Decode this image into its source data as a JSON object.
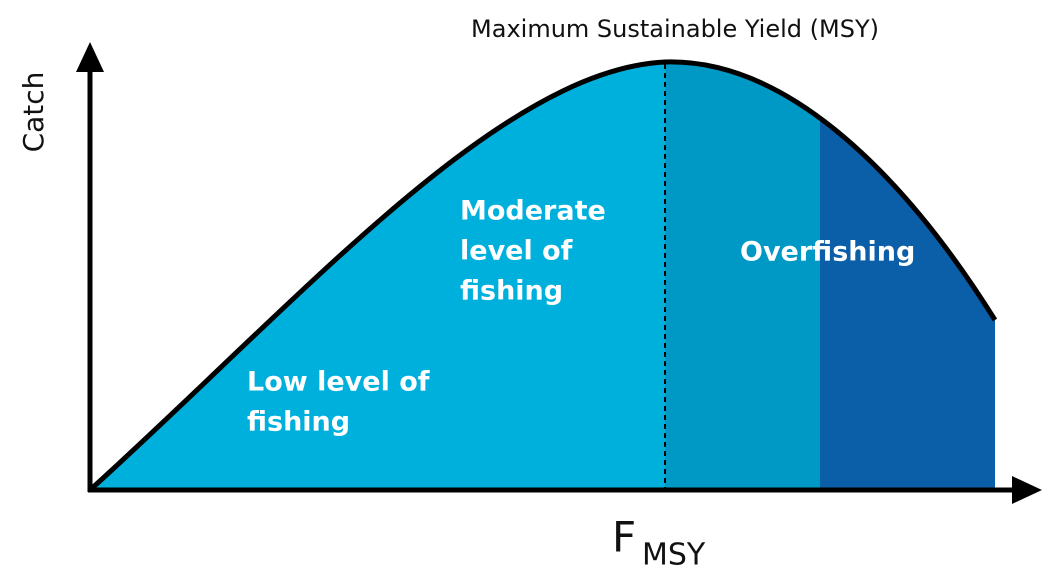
{
  "title": "Maximum Sustainable Yield (MSY)",
  "y_axis_label": "Catch",
  "x_axis_label": {
    "main": "F",
    "subscript": "MSY"
  },
  "regions": [
    {
      "label": [
        "Low level of",
        "fishing"
      ]
    },
    {
      "label": [
        "Moderate",
        "level of",
        "fishing"
      ]
    },
    {
      "label": [
        "Overfishing"
      ]
    }
  ]
}
